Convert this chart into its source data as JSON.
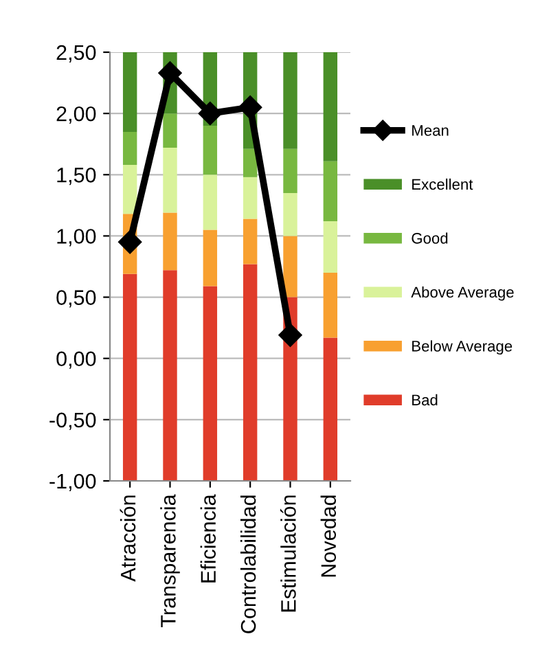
{
  "chart_data": {
    "type": "bar",
    "categories": [
      "Atracción",
      "Transparencia",
      "Eficiencia",
      "Controlabilidad",
      "Estimulación",
      "Novedad"
    ],
    "series": [
      {
        "name": "Bad",
        "color": "#e03c2a",
        "base": [
          -1,
          -1,
          -1,
          -1,
          -1,
          -1
        ],
        "values": [
          1.69,
          1.72,
          1.59,
          1.77,
          1.5,
          1.17
        ]
      },
      {
        "name": "Below Average",
        "color": "#f8a030",
        "base": [
          0.69,
          0.72,
          0.59,
          0.77,
          0.5,
          0.17
        ],
        "values": [
          0.49,
          0.47,
          0.46,
          0.37,
          0.5,
          0.53
        ]
      },
      {
        "name": "Above Average",
        "color": "#d9f29a",
        "base": [
          1.18,
          1.19,
          1.05,
          1.14,
          1.0,
          0.7
        ],
        "values": [
          0.4,
          0.53,
          0.45,
          0.34,
          0.35,
          0.42
        ]
      },
      {
        "name": "Good",
        "color": "#78b840",
        "base": [
          1.58,
          1.72,
          1.5,
          1.48,
          1.35,
          1.12
        ],
        "values": [
          0.27,
          0.28,
          0.4,
          0.23,
          0.36,
          0.49
        ]
      },
      {
        "name": "Excellent",
        "color": "#4a8f28",
        "base": [
          1.85,
          2.0,
          1.9,
          1.71,
          1.71,
          1.61
        ],
        "values": [
          0.65,
          0.5,
          0.6,
          0.79,
          0.79,
          0.89
        ]
      },
      {
        "name": "Mean",
        "type": "line",
        "color": "#000000",
        "marker": "diamond",
        "values": [
          0.95,
          2.33,
          2.0,
          2.05,
          0.19,
          null
        ]
      }
    ],
    "ylim": [
      -1,
      2.5
    ],
    "yticks": [
      {
        "value": -1,
        "label": "-1,00"
      },
      {
        "value": -0.5,
        "label": "-0,50"
      },
      {
        "value": 0,
        "label": "0,00"
      },
      {
        "value": 0.5,
        "label": "0,50"
      },
      {
        "value": 1,
        "label": "1,00"
      },
      {
        "value": 1.5,
        "label": "1,50"
      },
      {
        "value": 2,
        "label": "2,00"
      },
      {
        "value": 2.5,
        "label": "2,50"
      }
    ],
    "grid": "y",
    "legend": "right"
  }
}
